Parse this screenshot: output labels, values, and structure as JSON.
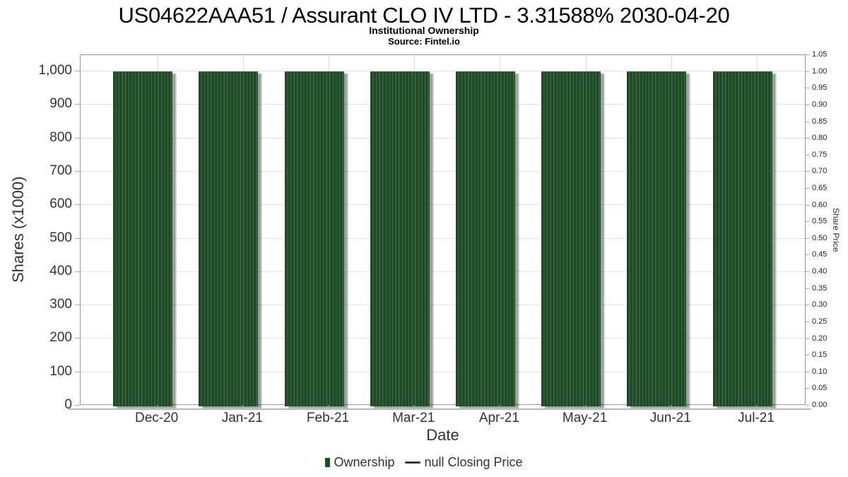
{
  "header": {
    "title": "US04622AAA51 / Assurant CLO IV LTD - 3.31588% 2030-04-20",
    "subtitle": "Institutional Ownership",
    "source": "Source: Fintel.io"
  },
  "chart_data": {
    "type": "bar",
    "title": "US04622AAA51 / Assurant CLO IV LTD - 3.31588% 2030-04-20",
    "subtitle": "Institutional Ownership",
    "source": "Source: Fintel.io",
    "categories": [
      "Dec-20",
      "Jan-21",
      "Feb-21",
      "Mar-21",
      "Apr-21",
      "May-21",
      "Jun-21",
      "Jul-21"
    ],
    "series": [
      {
        "name": "Ownership",
        "type": "bar",
        "color": "#1e4a25",
        "values": [
          1000,
          1000,
          1000,
          1000,
          1000,
          1000,
          1000,
          1000
        ]
      },
      {
        "name": "null Closing Price",
        "type": "line",
        "color": "#3a3a3a",
        "values": []
      }
    ],
    "xlabel": "Date",
    "ylabel_left": "Shares (x1000)",
    "ylabel_right": "Share Price",
    "ylim_left": [
      0,
      1048
    ],
    "ylim_right": [
      0,
      1.05
    ],
    "yticks_left": {
      "values": [
        0,
        100,
        200,
        300,
        400,
        500,
        600,
        700,
        800,
        900,
        1000
      ],
      "labels": [
        "0",
        "100",
        "200",
        "300",
        "400",
        "500",
        "600",
        "700",
        "800",
        "900",
        "1,000"
      ]
    },
    "yticks_right": {
      "values": [
        0,
        0.05,
        0.1,
        0.15,
        0.2,
        0.25,
        0.3,
        0.35,
        0.4,
        0.45,
        0.5,
        0.55,
        0.6,
        0.65,
        0.7,
        0.75,
        0.8,
        0.85,
        0.9,
        0.95,
        1.0,
        1.05
      ],
      "labels": [
        "0.00",
        "0.05",
        "0.10",
        "0.15",
        "0.20",
        "0.25",
        "0.30",
        "0.35",
        "0.40",
        "0.45",
        "0.50",
        "0.55",
        "0.60",
        "0.65",
        "0.70",
        "0.75",
        "0.80",
        "0.85",
        "0.90",
        "0.95",
        "1.00",
        "1.05"
      ]
    },
    "grid": true,
    "legend_position": "bottom"
  },
  "legend": {
    "items": [
      {
        "label": "Ownership",
        "marker": "square",
        "color": "#1e4a25"
      },
      {
        "label": "null Closing Price",
        "marker": "line",
        "color": "#3a3a3a"
      }
    ]
  },
  "colors": {
    "bar": "#1e4a25",
    "bar_stripe": "#3c6a42",
    "grid": "#e4e4e4",
    "plot_border": "#989898",
    "text": "#333333"
  }
}
